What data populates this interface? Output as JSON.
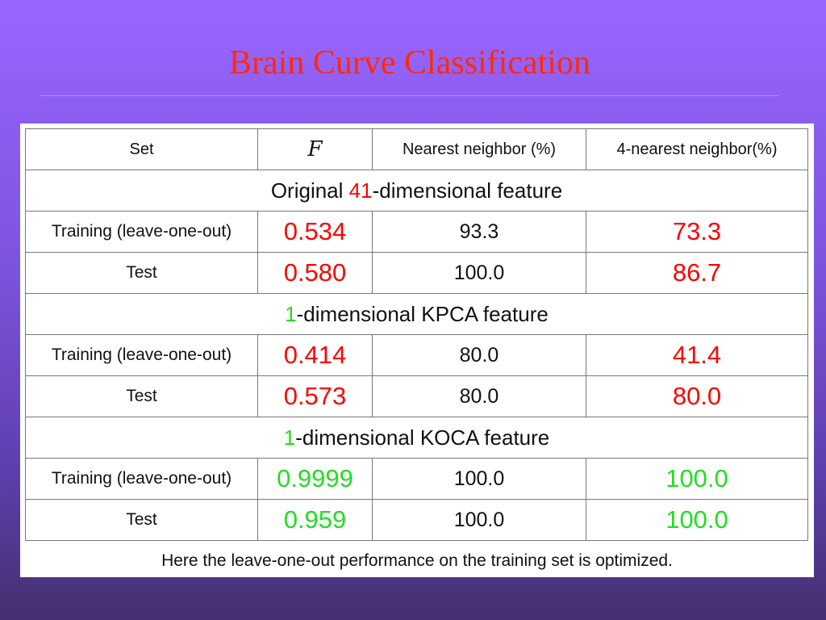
{
  "slide": {
    "title": "Brain Curve Classification"
  },
  "table": {
    "headers": {
      "set": "Set",
      "f": "F",
      "nn": "Nearest neighbor (%)",
      "knn": "4-nearest neighbor(%)"
    },
    "sections": [
      {
        "heading_prefix": "Original ",
        "heading_number": "41",
        "heading_suffix": "-dimensional feature",
        "number_color": "#ff0000",
        "rows": [
          {
            "set": "Training (leave-one-out)",
            "f": "0.534",
            "nn": "93.3",
            "knn": "73.3"
          },
          {
            "set": "Test",
            "f": "0.580",
            "nn": "100.0",
            "knn": "86.7"
          }
        ]
      },
      {
        "heading_prefix": "",
        "heading_number": "1",
        "heading_suffix": "-dimensional KPCA feature",
        "number_color": "#22dd22",
        "rows": [
          {
            "set": "Training (leave-one-out)",
            "f": "0.414",
            "nn": "80.0",
            "knn": "41.4"
          },
          {
            "set": "Test",
            "f": "0.573",
            "nn": "80.0",
            "knn": "80.0"
          }
        ]
      },
      {
        "heading_prefix": "",
        "heading_number": "1",
        "heading_suffix": "-dimensional KOCA feature",
        "number_color": "#22dd22",
        "rows": [
          {
            "set": "Training (leave-one-out)",
            "f": "0.9999",
            "nn": "100.0",
            "knn": "100.0"
          },
          {
            "set": "Test",
            "f": "0.959",
            "nn": "100.0",
            "knn": "100.0"
          }
        ]
      }
    ],
    "footnote": "Here the leave-one-out performance on the training set is optimized."
  },
  "colors": {
    "title": "#ff2a0a",
    "highlight_red": "#ff0000",
    "highlight_green": "#22dd22"
  }
}
